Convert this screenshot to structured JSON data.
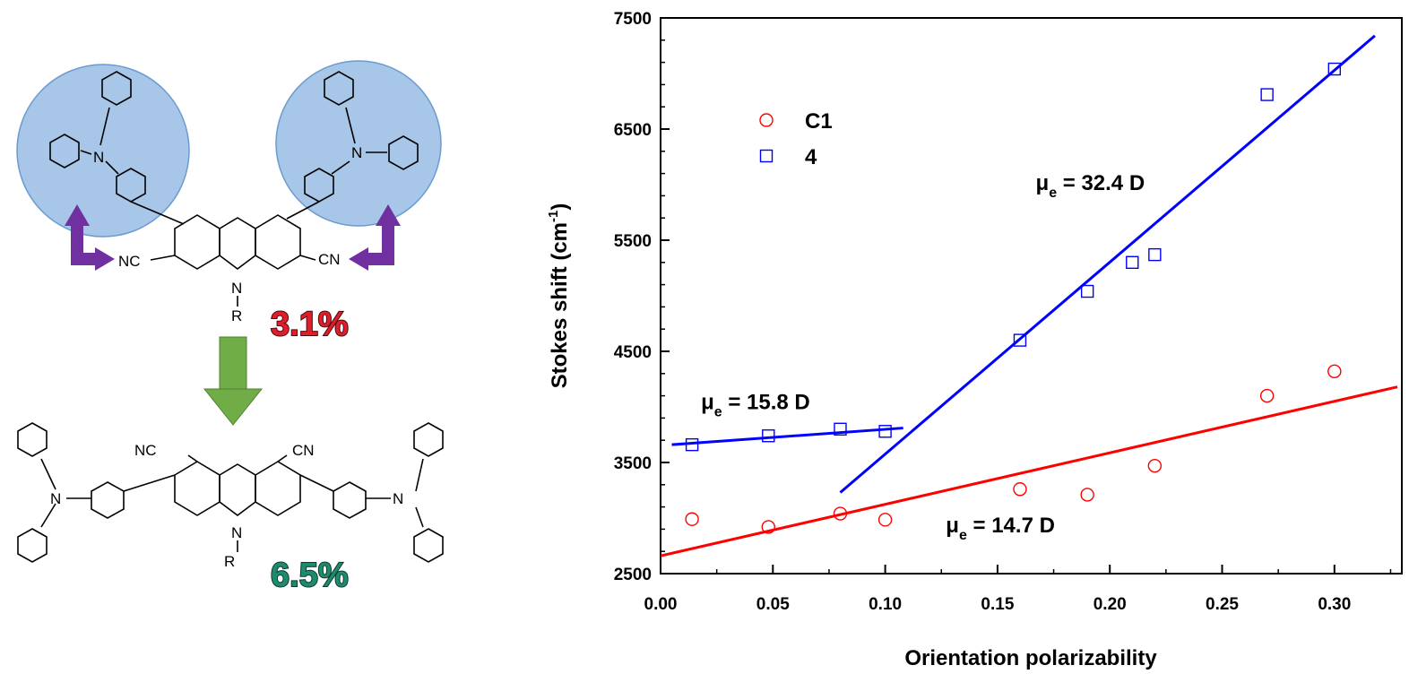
{
  "scheme": {
    "top_molecule": {
      "substituent_left": "NC",
      "substituent_right": "CN",
      "nitrogen_label": "N",
      "r_label": "R",
      "amine_label": "N",
      "efficiency": "3.1%"
    },
    "bottom_molecule": {
      "substituent_left": "NC",
      "substituent_right": "CN",
      "nitrogen_label": "N",
      "r_label": "R",
      "amine_label": "N",
      "efficiency": "6.5%"
    },
    "colors": {
      "circle": "#a8c6e8",
      "arrow_purple": "#7030a0",
      "arrow_green": "#70ad47",
      "pct_top": "#e01e2a",
      "pct_bottom": "#1f8a6e"
    }
  },
  "chart_data": {
    "type": "scatter",
    "xlabel": "Orientation polarizability",
    "ylabel_main": "Stokes shift (cm",
    "ylabel_sup": "-1",
    "ylabel_close": ")",
    "xlim": [
      0.0,
      0.33
    ],
    "ylim": [
      2500,
      7500
    ],
    "xticks": [
      0.0,
      0.05,
      0.1,
      0.15,
      0.2,
      0.25,
      0.3
    ],
    "xtick_labels": [
      "0.00",
      "0.05",
      "0.10",
      "0.15",
      "0.20",
      "0.25",
      "0.30"
    ],
    "yticks": [
      2500,
      3500,
      4500,
      5500,
      6500,
      7500
    ],
    "ytick_labels": [
      "2500",
      "3500",
      "4500",
      "5500",
      "6500",
      "7500"
    ],
    "legend_position": "top-left",
    "series": [
      {
        "name": "C1",
        "marker": "circle",
        "color": "#ff0000",
        "points": [
          [
            0.014,
            2990
          ],
          [
            0.048,
            2920
          ],
          [
            0.08,
            3040
          ],
          [
            0.1,
            2985
          ],
          [
            0.16,
            3260
          ],
          [
            0.19,
            3210
          ],
          [
            0.22,
            3470
          ],
          [
            0.27,
            4100
          ],
          [
            0.3,
            4320
          ]
        ],
        "fits": [
          {
            "x": [
              0.0,
              0.328
            ],
            "y": [
              2660,
              4180
            ]
          }
        ]
      },
      {
        "name": "4",
        "marker": "square",
        "color": "#0000ff",
        "points": [
          [
            0.014,
            3660
          ],
          [
            0.048,
            3740
          ],
          [
            0.08,
            3800
          ],
          [
            0.1,
            3780
          ],
          [
            0.16,
            4600
          ],
          [
            0.19,
            5040
          ],
          [
            0.21,
            5300
          ],
          [
            0.22,
            5370
          ],
          [
            0.27,
            6810
          ],
          [
            0.3,
            7040
          ]
        ],
        "fits": [
          {
            "x": [
              0.005,
              0.108
            ],
            "y": [
              3660,
              3810
            ]
          },
          {
            "x": [
              0.08,
              0.318
            ],
            "y": [
              3230,
              7340
            ]
          }
        ]
      }
    ],
    "annotations": [
      {
        "main": "μ",
        "sub": "e",
        "rest": " = 32.4 D",
        "x": 0.167,
        "y": 5950
      },
      {
        "main": "μ",
        "sub": "e",
        "rest": " = 15.8 D",
        "x": 0.018,
        "y": 3980
      },
      {
        "main": "μ",
        "sub": "e",
        "rest": " = 14.7 D",
        "x": 0.127,
        "y": 2870
      }
    ]
  }
}
